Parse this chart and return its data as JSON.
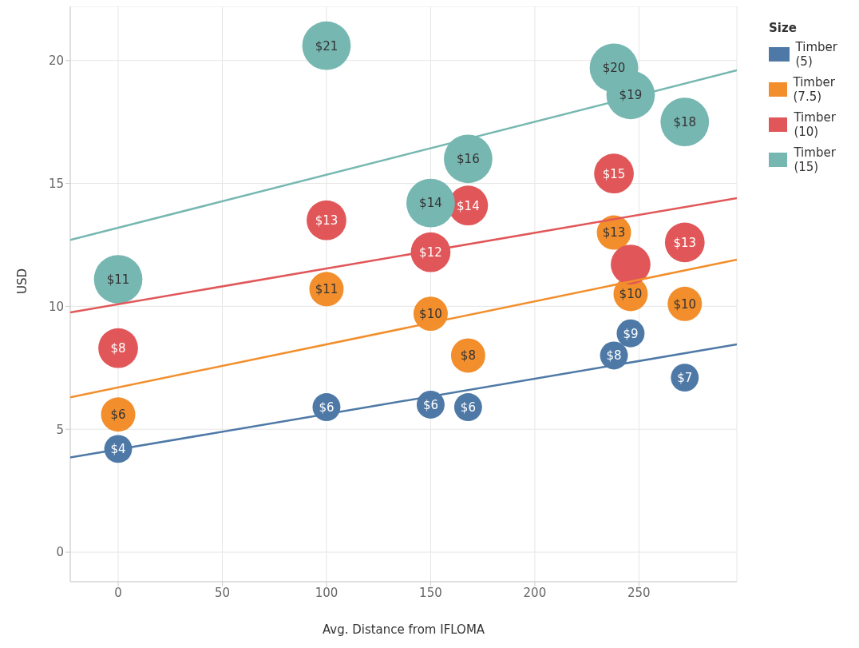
{
  "chart_data": {
    "type": "bubble",
    "xlabel": "Avg. Distance from IFLOMA",
    "ylabel": "USD",
    "legend_title": "Size",
    "legend": "top right",
    "grid": true,
    "xlim": [
      -23,
      297
    ],
    "xticks": [
      0,
      50,
      100,
      150,
      200,
      250
    ],
    "ylim": [
      -1.2,
      22.2
    ],
    "yticks": [
      0,
      5,
      10,
      15,
      20
    ],
    "series": [
      {
        "name": "Timber (5)",
        "color": "#4e79a7",
        "x": [
          0,
          100,
          150,
          168,
          238,
          246,
          272
        ],
        "values": [
          4.2,
          5.9,
          6.0,
          5.9,
          8.0,
          8.9,
          7.1
        ],
        "sizes": [
          0.33,
          0.33,
          0.33,
          0.33,
          0.33,
          0.33,
          0.33
        ],
        "value_labels": [
          "$4",
          "$6",
          "$6",
          "$6",
          "$8",
          "$9",
          "$7"
        ]
      },
      {
        "name": "Timber (7.5)",
        "color": "#f28e2b",
        "x": [
          0,
          100,
          150,
          168,
          238,
          246,
          272
        ],
        "values": [
          5.6,
          10.7,
          9.7,
          8.0,
          13.0,
          10.5,
          10.1
        ],
        "sizes": [
          0.5,
          0.5,
          0.5,
          0.5,
          0.5,
          0.5,
          0.5
        ],
        "value_labels": [
          "$6",
          "$11",
          "$10",
          "$8",
          "$13",
          "$10",
          "$10"
        ]
      },
      {
        "name": "Timber (10)",
        "color": "#e15759",
        "x": [
          0,
          100,
          150,
          168,
          238,
          246,
          272
        ],
        "values": [
          8.3,
          13.5,
          12.2,
          14.1,
          15.4,
          11.7,
          12.6
        ],
        "sizes": [
          0.67,
          0.67,
          0.67,
          0.67,
          0.67,
          0.67,
          0.67
        ],
        "value_labels": [
          "$8",
          "$13",
          "$12",
          "$14",
          "$15",
          null,
          "$13"
        ]
      },
      {
        "name": "Timber (15)",
        "color": "#76b7b2",
        "x": [
          0,
          100,
          150,
          168,
          238,
          246,
          272
        ],
        "values": [
          11.1,
          20.6,
          14.2,
          16.0,
          19.7,
          18.6,
          17.5
        ],
        "sizes": [
          1,
          1,
          1,
          1,
          1,
          1,
          1
        ],
        "value_labels": [
          "$11",
          "$21",
          "$14",
          "$16",
          "$20",
          "$19",
          "$18"
        ]
      },
      {
        "type": "line",
        "color": "#4e79a7",
        "x": [
          -23,
          297
        ],
        "values": [
          3.85,
          8.45
        ]
      },
      {
        "type": "line",
        "color": "#f28e2b",
        "x": [
          -23,
          297
        ],
        "values": [
          6.3,
          11.9
        ]
      },
      {
        "type": "line",
        "color": "#e15759",
        "x": [
          -23,
          297
        ],
        "values": [
          9.75,
          14.4
        ]
      },
      {
        "type": "line",
        "color": "#76b7b2",
        "x": [
          -23,
          297
        ],
        "values": [
          12.7,
          19.6
        ]
      }
    ]
  }
}
